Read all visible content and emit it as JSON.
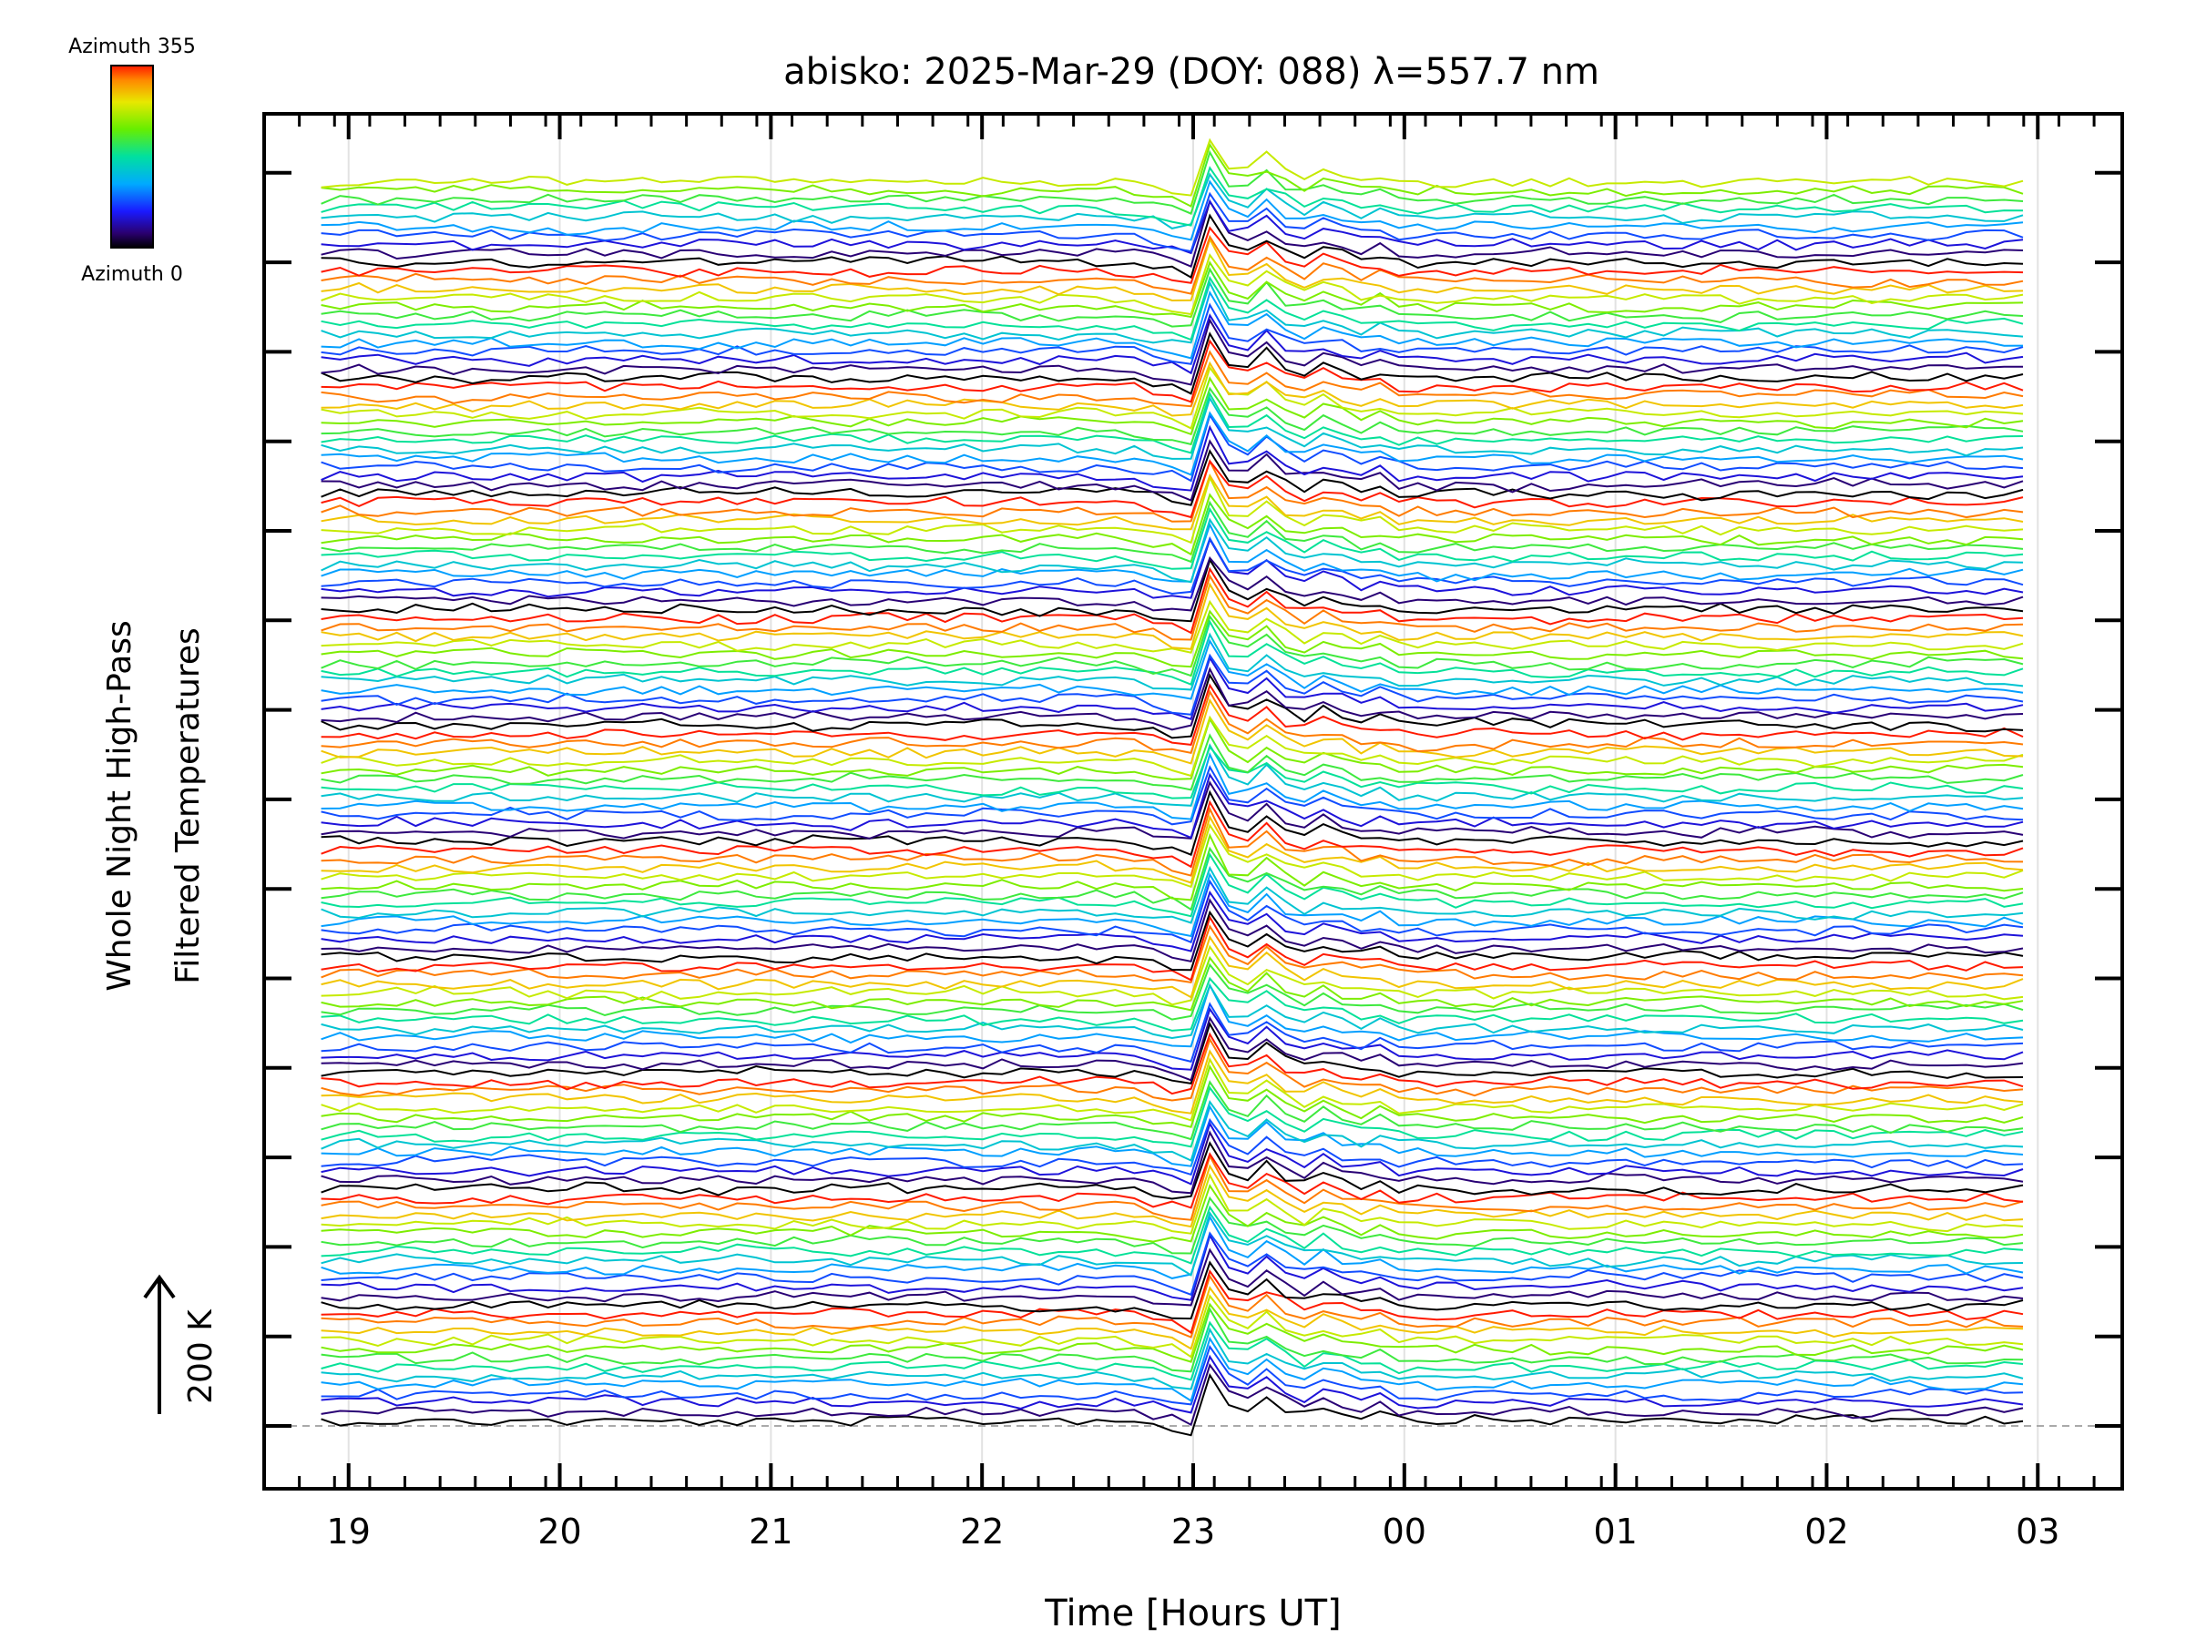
{
  "chart_data": {
    "type": "line",
    "title": "abisko: 2025-Mar-29 (DOY: 088) λ=557.7 nm",
    "xlabel": "Time [Hours UT]",
    "ylabel_line1": "Whole Night High-Pass",
    "ylabel_line2": "Filtered Temperatures",
    "scale_label": "200 K",
    "x_tick_labels": [
      "19",
      "20",
      "21",
      "22",
      "23",
      "00",
      "01",
      "02",
      "03"
    ],
    "x_range_hours": [
      18.6,
      27.4
    ],
    "data_range_hours": [
      18.87,
      26.93
    ],
    "colorbar": {
      "top_label": "Azimuth 355",
      "bottom_label": "Azimuth 0",
      "colormap": "rainbow (black → purple → blue → cyan → green → yellow → orange → red)"
    },
    "azimuth_cycle": [
      0,
      30,
      60,
      90,
      120,
      150,
      180,
      210,
      240,
      270,
      300,
      330,
      355
    ],
    "trace_count_approx": 140,
    "event_hour": 23.0,
    "grid": true
  }
}
